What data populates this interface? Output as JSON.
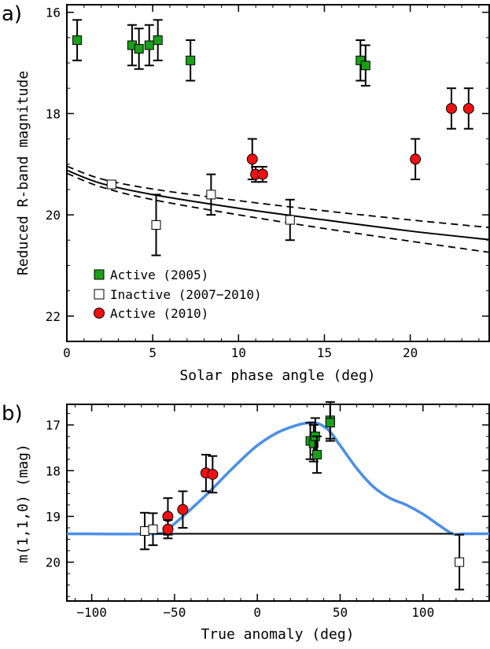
{
  "chart_data": [
    {
      "panel_label": "a)",
      "type": "scatter",
      "xlabel": "Solar phase angle (deg)",
      "ylabel": "Reduced R-band magnitude",
      "xlim": [
        0,
        24.6
      ],
      "ylim": [
        22.5,
        15.85
      ],
      "y_inverted": true,
      "xticks": [
        0,
        5,
        10,
        15,
        20
      ],
      "xtick_labels": [
        "0",
        "5",
        "10",
        "15",
        "20"
      ],
      "yticks": [
        16,
        18,
        20,
        22
      ],
      "ytick_labels": [
        "16",
        "18",
        "20",
        "22"
      ],
      "legend": {
        "position": "bottom-left",
        "entries": [
          {
            "label": "Active (2005)",
            "marker": "square",
            "color": "#1aa01a"
          },
          {
            "label": "Inactive (2007−2010)",
            "marker": "square",
            "color": "#ffffff"
          },
          {
            "label": "Active (2010)",
            "marker": "circle",
            "color": "#ee1111"
          }
        ]
      },
      "series": [
        {
          "name": "Active (2005)",
          "marker": "square",
          "color": "#1aa01a",
          "x": [
            0.6,
            3.8,
            4.2,
            4.8,
            5.3,
            7.2,
            17.1,
            17.4
          ],
          "y": [
            16.55,
            16.65,
            16.72,
            16.65,
            16.55,
            16.95,
            16.95,
            17.05
          ],
          "err": [
            0.4,
            0.4,
            0.4,
            0.4,
            0.4,
            0.4,
            0.4,
            0.4
          ]
        },
        {
          "name": "Inactive (2007−2010)",
          "marker": "square",
          "color": "#ffffff",
          "x": [
            2.6,
            5.2,
            8.4,
            13.0
          ],
          "y": [
            19.4,
            20.2,
            19.6,
            20.1
          ],
          "err": [
            0.07,
            0.6,
            0.4,
            0.4
          ]
        },
        {
          "name": "Active (2010)",
          "marker": "circle",
          "color": "#ee1111",
          "x": [
            10.8,
            11.0,
            11.4,
            20.3,
            22.4,
            23.4
          ],
          "y": [
            18.9,
            19.2,
            19.2,
            18.9,
            17.9,
            17.9
          ],
          "err": [
            0.4,
            0.15,
            0.15,
            0.4,
            0.4,
            0.4
          ]
        }
      ],
      "model_curves": [
        {
          "name": "phase-function fit",
          "style": "solid",
          "x": [
            0,
            2,
            5,
            10,
            15,
            20,
            24.6
          ],
          "y": [
            19.12,
            19.38,
            19.6,
            19.87,
            20.1,
            20.32,
            20.49
          ]
        },
        {
          "name": "upper bound",
          "style": "dashed",
          "x": [
            0,
            2,
            5,
            10,
            15,
            20,
            24.6
          ],
          "y": [
            19.04,
            19.29,
            19.49,
            19.72,
            19.92,
            20.1,
            20.25
          ]
        },
        {
          "name": "lower bound",
          "style": "dashed",
          "x": [
            0,
            2,
            5,
            10,
            15,
            20,
            24.6
          ],
          "y": [
            19.18,
            19.45,
            19.7,
            20.0,
            20.27,
            20.52,
            20.74
          ]
        }
      ]
    },
    {
      "panel_label": "b)",
      "type": "scatter",
      "xlabel": "True anomaly (deg)",
      "ylabel": "m(1,1,0) (mag)",
      "xlim": [
        -115,
        140
      ],
      "ylim": [
        20.85,
        16.55
      ],
      "y_inverted": true,
      "xticks": [
        -100,
        -50,
        0,
        50,
        100
      ],
      "xtick_labels": [
        "−100",
        "−50",
        "0",
        "50",
        "100"
      ],
      "yticks": [
        17,
        18,
        19,
        20
      ],
      "ytick_labels": [
        "17",
        "18",
        "19",
        "20"
      ],
      "series": [
        {
          "name": "Active (2005)",
          "marker": "square",
          "color": "#1aa01a",
          "x": [
            32,
            34,
            35,
            36,
            44,
            44
          ],
          "y": [
            17.35,
            17.4,
            17.25,
            17.65,
            16.9,
            16.95
          ],
          "err": [
            0.4,
            0.4,
            0.4,
            0.4,
            0.4,
            0.4
          ]
        },
        {
          "name": "Inactive (2007−2010)",
          "marker": "square",
          "color": "#ffffff",
          "x": [
            -68,
            -63,
            122
          ],
          "y": [
            19.32,
            19.28,
            20.0
          ],
          "err": [
            0.4,
            0.35,
            0.6
          ]
        },
        {
          "name": "Active (2010)",
          "marker": "circle",
          "color": "#ee1111",
          "x": [
            -54,
            -54,
            -45,
            -31,
            -27
          ],
          "y": [
            19.0,
            19.28,
            18.85,
            18.05,
            18.08
          ],
          "err": [
            0.4,
            0.2,
            0.4,
            0.4,
            0.4
          ]
        }
      ],
      "model_curves": [
        {
          "name": "activity model",
          "style": "solid",
          "color": "#4a8fe7",
          "x": [
            -115,
            -62,
            -55,
            -45,
            -30,
            -15,
            0,
            15,
            32,
            42,
            50,
            60,
            70,
            80,
            90,
            100,
            110,
            118,
            125,
            140
          ],
          "y": [
            19.38,
            19.38,
            19.3,
            19.0,
            18.5,
            17.95,
            17.45,
            17.12,
            16.95,
            17.08,
            17.45,
            17.95,
            18.35,
            18.6,
            18.75,
            18.95,
            19.2,
            19.38,
            19.38,
            19.38
          ]
        },
        {
          "name": "inactive baseline",
          "style": "solid",
          "color": "#000000",
          "x": [
            -62,
            118
          ],
          "y": [
            19.38,
            19.38
          ]
        }
      ]
    }
  ]
}
